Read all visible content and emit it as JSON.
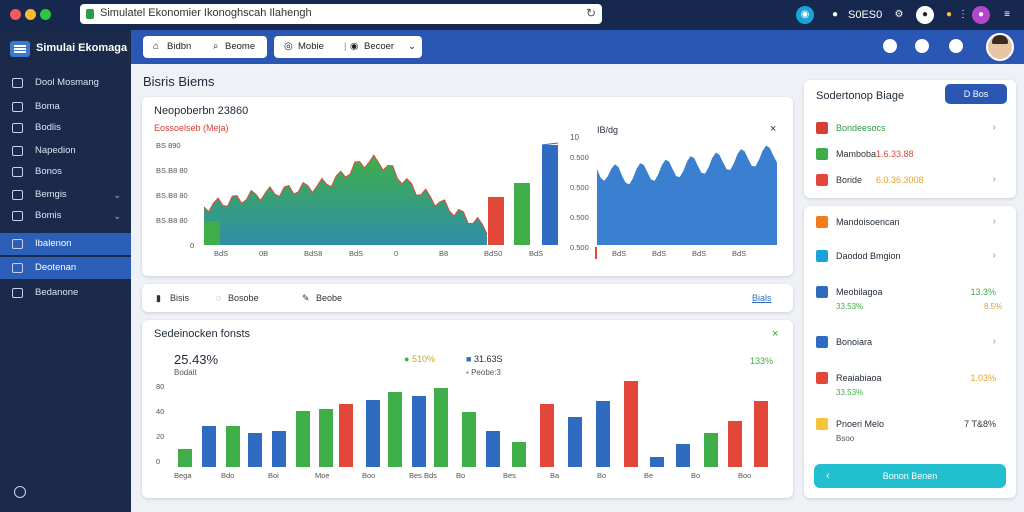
{
  "window": {
    "url": "Simulatel Ekonomier Ikonoghscah Ilahengh",
    "right_label": "S0ES0"
  },
  "colors": {
    "accent": "#2a57b3",
    "sidebar": "#1b2a4a",
    "green": "#3fae49",
    "red": "#e2473a",
    "blue": "#2f6cc1",
    "teal": "#22c0cf"
  },
  "sidebar": {
    "brand": "Simulai Ekomaga",
    "items": [
      {
        "label": "Dool Mosmang",
        "icon": "clock-icon"
      },
      {
        "label": "Boma",
        "icon": "gear-icon"
      },
      {
        "label": "Bodlis",
        "icon": "folder-icon"
      },
      {
        "label": "Napedion",
        "icon": "bell-icon"
      },
      {
        "label": "Bonos",
        "icon": "doc-icon"
      },
      {
        "label": "Bemgis",
        "icon": "chat-icon"
      },
      {
        "label": "Bomis",
        "icon": "grid-icon"
      },
      {
        "label": "Ibalenon",
        "icon": "chart-icon"
      },
      {
        "label": "Deotenan",
        "icon": "edit-icon"
      },
      {
        "label": "Bedanone",
        "icon": "list-icon"
      }
    ]
  },
  "appbar": {
    "pill1": [
      "Bidbn",
      "Beome"
    ],
    "pill2": [
      "Mobie",
      "Becoer"
    ]
  },
  "page": {
    "title": "Bisris Biems"
  },
  "main_chart": {
    "title": "Neopoberbn 23860",
    "subtitle": "Eossoelseb (Meja)",
    "y_ticks": [
      "BS 890",
      "BS.B8 80",
      "BS.B8 80",
      "BS.B8 80",
      "0"
    ],
    "x_ticks": [
      "BdS",
      "0B",
      "BdS8",
      "BdS",
      "0",
      "B8",
      "BdS0",
      "BdS"
    ],
    "side_label": "10"
  },
  "side_chart": {
    "title": "IB/dg",
    "y_ticks": [
      "0.500",
      "0.500",
      "0.500",
      "0.500"
    ],
    "x_ticks": [
      "BdS",
      "BdS",
      "BdS",
      "BdS"
    ]
  },
  "toolbar": {
    "items": [
      "Bisis",
      "Bosobe",
      "Beobe"
    ],
    "link": "Bials"
  },
  "bottom_chart": {
    "title": "Sedeinocken fonsts",
    "stat1": {
      "value": "25.43%",
      "label": "Bodait"
    },
    "stat2": {
      "value": "510%"
    },
    "stat3": {
      "value": "31.63S",
      "label": "Peobe:3"
    },
    "stat4": {
      "value": "133%"
    },
    "y_ticks": [
      "80",
      "40",
      "20",
      "0"
    ],
    "x_ticks": [
      "Bega",
      "Bdo",
      "Boi",
      "Moe",
      "Boo",
      "Bes Bds",
      "Bo",
      "Bes",
      "Ba",
      "Bo",
      "Be",
      "Bo",
      "Boo"
    ],
    "side_label": "Bes"
  },
  "right_panel": {
    "card1": {
      "title": "Sodertonop Biage",
      "button": "D Bos",
      "rows": [
        {
          "label": "Bondeesocs",
          "value": ""
        },
        {
          "label": "Mamboba",
          "value": "1.6.33.88"
        },
        {
          "label": "Boride",
          "value": "6.0.36.3008"
        }
      ]
    },
    "card2": {
      "rows": [
        {
          "label": "Mandoisoencan",
          "value": ""
        },
        {
          "label": "Daodod Bmgion",
          "value": ""
        },
        {
          "label": "Meobilagoa",
          "value": "13.3%",
          "sub": "33.53%",
          "sub_right": "8.5%"
        },
        {
          "label": "Bonoiara",
          "value": ""
        },
        {
          "label": "Reaiabiaoa",
          "value": "1.03%",
          "sub": "33.53%"
        },
        {
          "label": "Pnoeri Melo",
          "value": "7 T&8%",
          "sub": "Bsoo"
        }
      ],
      "button": "Bonon Benen"
    }
  }
}
